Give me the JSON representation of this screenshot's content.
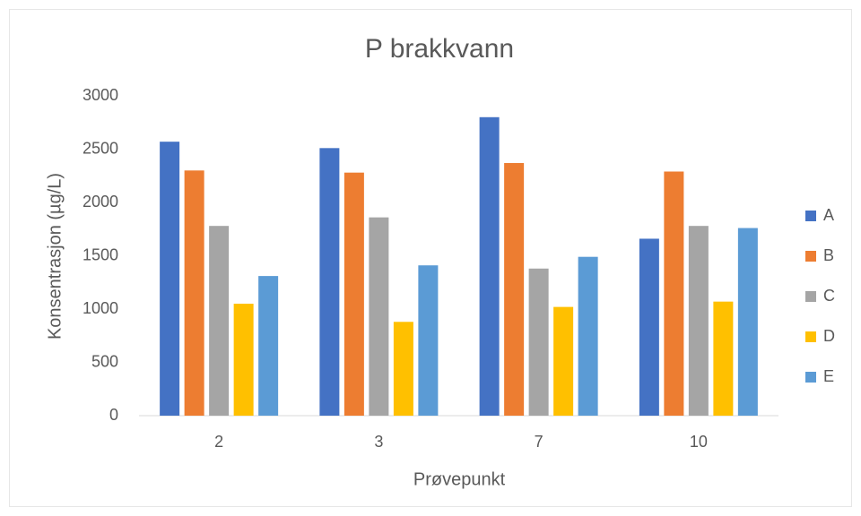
{
  "chart_data": {
    "type": "bar",
    "title": "P brakkvann",
    "x_label": "Prøvepunkt",
    "y_label": "Konsentrasjon (µg/L)",
    "categories": [
      "2",
      "3",
      "7",
      "10"
    ],
    "series": [
      {
        "name": "A",
        "color": "#4472c4",
        "values": [
          2570,
          2510,
          2800,
          1660
        ]
      },
      {
        "name": "B",
        "color": "#ed7d31",
        "values": [
          2300,
          2280,
          2370,
          2290
        ]
      },
      {
        "name": "C",
        "color": "#a5a5a5",
        "values": [
          1780,
          1860,
          1380,
          1780
        ]
      },
      {
        "name": "D",
        "color": "#ffc000",
        "values": [
          1050,
          880,
          1020,
          1070
        ]
      },
      {
        "name": "E",
        "color": "#5b9bd5",
        "values": [
          1310,
          1410,
          1490,
          1760
        ]
      }
    ],
    "ylim": [
      0,
      3000
    ],
    "yticks": [
      0,
      500,
      1000,
      1500,
      2000,
      2500,
      3000
    ],
    "grid": false,
    "legend": "right"
  }
}
